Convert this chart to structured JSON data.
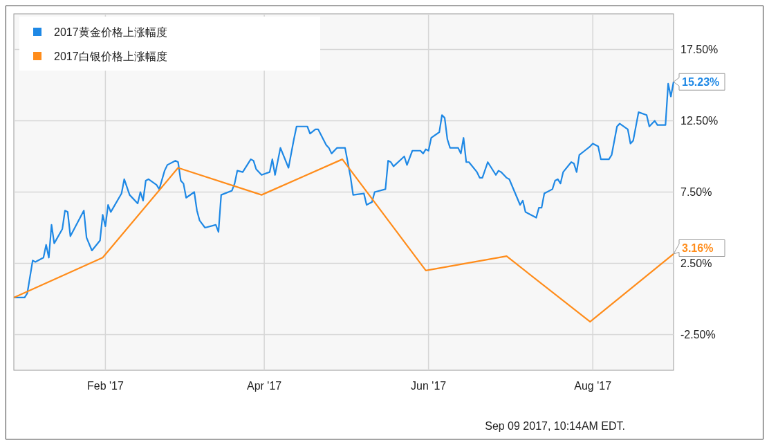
{
  "chart_data": {
    "type": "line",
    "xlim": [
      "2016-12-29",
      "2017-08-31"
    ],
    "xticks": [
      {
        "value": "2017-02-01",
        "label": "Feb '17"
      },
      {
        "value": "2017-04-01",
        "label": "Apr '17"
      },
      {
        "value": "2017-06-01",
        "label": "Jun '17"
      },
      {
        "value": "2017-08-01",
        "label": "Aug '17"
      }
    ],
    "ylim": [
      -5,
      20
    ],
    "yticks": [
      {
        "value": -2.5,
        "label": "-2.50%"
      },
      {
        "value": 2.5,
        "label": "2.50%"
      },
      {
        "value": 7.5,
        "label": "7.50%"
      },
      {
        "value": 12.5,
        "label": "12.50%"
      },
      {
        "value": 17.5,
        "label": "17.50%"
      }
    ],
    "grid": true,
    "legend": "top left",
    "marker": "none",
    "line_style": "solid",
    "series": [
      {
        "name": "2017黄金价格上涨幅度",
        "color": "#1e88e5",
        "x": [
          "2016-12-29",
          "2017-01-02",
          "2017-01-03",
          "2017-01-05",
          "2017-01-06",
          "2017-01-09",
          "2017-01-10",
          "2017-01-11",
          "2017-01-12",
          "2017-01-13",
          "2017-01-16",
          "2017-01-17",
          "2017-01-18",
          "2017-01-19",
          "2017-01-24",
          "2017-01-25",
          "2017-01-27",
          "2017-01-30",
          "2017-01-31",
          "2017-02-01",
          "2017-02-02",
          "2017-02-03",
          "2017-02-07",
          "2017-02-08",
          "2017-02-10",
          "2017-02-13",
          "2017-02-14",
          "2017-02-15",
          "2017-02-16",
          "2017-02-17",
          "2017-02-20",
          "2017-02-21",
          "2017-02-23",
          "2017-02-24",
          "2017-02-27",
          "2017-02-28",
          "2017-03-01",
          "2017-03-02",
          "2017-03-03",
          "2017-03-06",
          "2017-03-07",
          "2017-03-08",
          "2017-03-10",
          "2017-03-14",
          "2017-03-15",
          "2017-03-16",
          "2017-03-20",
          "2017-03-21",
          "2017-03-22",
          "2017-03-24",
          "2017-03-27",
          "2017-03-28",
          "2017-03-29",
          "2017-03-31",
          "2017-04-03",
          "2017-04-04",
          "2017-04-05",
          "2017-04-07",
          "2017-04-10",
          "2017-04-12",
          "2017-04-13",
          "2017-04-17",
          "2017-04-18",
          "2017-04-20",
          "2017-04-21",
          "2017-04-24",
          "2017-04-25",
          "2017-04-26",
          "2017-04-28",
          "2017-05-01",
          "2017-05-02",
          "2017-05-03",
          "2017-05-04",
          "2017-05-08",
          "2017-05-09",
          "2017-05-10",
          "2017-05-11",
          "2017-05-12",
          "2017-05-16",
          "2017-05-17",
          "2017-05-18",
          "2017-05-19",
          "2017-05-23",
          "2017-05-24",
          "2017-05-26",
          "2017-05-29",
          "2017-05-30",
          "2017-05-31",
          "2017-06-01",
          "2017-06-02",
          "2017-06-05",
          "2017-06-06",
          "2017-06-07",
          "2017-06-08",
          "2017-06-09",
          "2017-06-12",
          "2017-06-13",
          "2017-06-14",
          "2017-06-15",
          "2017-06-16",
          "2017-06-19",
          "2017-06-20",
          "2017-06-21",
          "2017-06-23",
          "2017-06-26",
          "2017-06-27",
          "2017-06-28",
          "2017-06-30",
          "2017-07-01",
          "2017-07-05",
          "2017-07-06",
          "2017-07-07",
          "2017-07-11",
          "2017-07-12",
          "2017-07-13",
          "2017-07-14",
          "2017-07-17",
          "2017-07-18",
          "2017-07-19",
          "2017-07-20",
          "2017-07-21",
          "2017-07-24",
          "2017-07-25",
          "2017-07-26",
          "2017-07-27",
          "2017-07-29",
          "2017-07-31",
          "2017-08-01",
          "2017-08-03",
          "2017-08-04",
          "2017-08-07",
          "2017-08-08",
          "2017-08-10",
          "2017-08-11",
          "2017-08-14",
          "2017-08-15",
          "2017-08-16",
          "2017-08-18",
          "2017-08-21",
          "2017-08-22",
          "2017-08-24",
          "2017-08-25",
          "2017-08-28",
          "2017-08-29",
          "2017-08-30",
          "2017-08-31"
        ],
        "values": [
          0.1,
          0.1,
          0.4,
          2.7,
          2.6,
          2.9,
          3.8,
          2.9,
          5.2,
          3.9,
          4.9,
          6.2,
          6.1,
          4.4,
          6.2,
          4.3,
          3.4,
          4.1,
          5.9,
          5.1,
          6.6,
          6.1,
          7.4,
          8.4,
          7.3,
          6.7,
          7.5,
          6.9,
          8.3,
          8.4,
          8.0,
          7.7,
          9.0,
          9.4,
          9.7,
          9.6,
          8.3,
          8.1,
          7.1,
          7.5,
          6.2,
          5.5,
          5.0,
          5.2,
          4.7,
          7.3,
          7.6,
          8.1,
          9.0,
          8.9,
          9.8,
          9.7,
          9.1,
          8.7,
          8.9,
          9.8,
          8.7,
          10.6,
          9.2,
          11.2,
          12.1,
          12.1,
          11.6,
          11.9,
          11.9,
          10.8,
          10.6,
          10.2,
          10.6,
          10.6,
          9.6,
          8.6,
          7.3,
          7.4,
          6.6,
          6.7,
          6.8,
          7.5,
          7.7,
          9.7,
          9.6,
          9.3,
          10.0,
          9.4,
          10.4,
          10.4,
          10.2,
          10.5,
          10.4,
          11.3,
          11.7,
          12.9,
          12.7,
          11.2,
          10.6,
          10.6,
          10.2,
          11.3,
          9.6,
          9.6,
          8.9,
          8.5,
          8.5,
          9.6,
          8.7,
          9.0,
          8.9,
          8.5,
          8.4,
          6.6,
          6.9,
          6.1,
          5.7,
          6.4,
          6.4,
          7.4,
          7.7,
          8.3,
          8.4,
          8.1,
          8.9,
          9.6,
          9.5,
          8.9,
          10.1,
          10.4,
          10.7,
          10.9,
          10.7,
          9.8,
          9.8,
          10.1,
          12.1,
          12.3,
          11.9,
          10.9,
          11.1,
          13.1,
          12.9,
          12.1,
          12.5,
          12.2,
          12.2,
          15.1,
          14.2,
          15.23
        ]
      },
      {
        "name": "2017白银价格上涨幅度",
        "color": "#ff8c1a",
        "x": [
          "2016-12-29",
          "2017-01-31",
          "2017-02-28",
          "2017-03-31",
          "2017-04-30",
          "2017-05-31",
          "2017-06-30",
          "2017-07-31",
          "2017-08-31"
        ],
        "values": [
          0.1,
          2.9,
          9.2,
          7.3,
          9.8,
          2.0,
          3.0,
          -1.6,
          3.16
        ]
      }
    ],
    "annotations": [
      {
        "text": "15.23%",
        "x": "2017-08-31",
        "y": 15.23
      },
      {
        "text": "3.16%",
        "x": "2017-08-31",
        "y": 3.16
      },
      "Sep 09 2017, 10:14AM EDT."
    ]
  }
}
